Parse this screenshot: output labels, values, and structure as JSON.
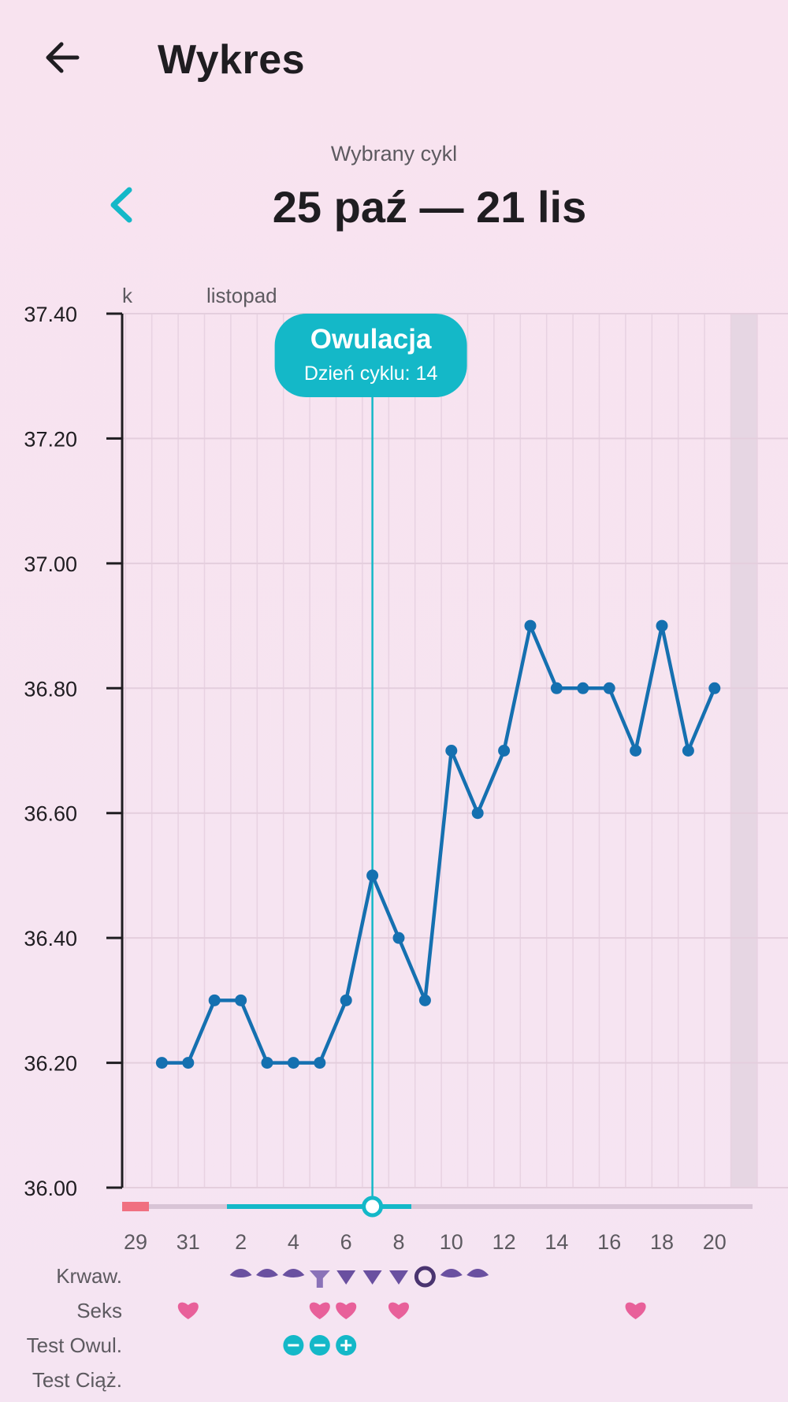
{
  "header": {
    "title": "Wykres",
    "back_icon": "arrow-left-icon"
  },
  "cycle": {
    "caption": "Wybrany cykl",
    "range": "25 paź — 21 lis",
    "prev_icon": "chevron-left-icon"
  },
  "colors": {
    "accent": "#14b8c8",
    "line": "#1570b0",
    "period": "#f07080",
    "heart": "#e8609a",
    "drop": "#6a50a0"
  },
  "chart_data": {
    "type": "line",
    "ylim": [
      36.0,
      37.4
    ],
    "y_ticks": [
      "37.40",
      "37.20",
      "37.00",
      "36.80",
      "36.60",
      "36.40",
      "36.20",
      "36.00"
    ],
    "month_labels": [
      {
        "label": "k",
        "day_index": 0
      },
      {
        "label": "listopad",
        "day_index": 3
      }
    ],
    "x_tick_labels": [
      "29",
      "31",
      "2",
      "4",
      "6",
      "8",
      "10",
      "12",
      "14",
      "16",
      "18",
      "20"
    ],
    "series": [
      {
        "x": [
          "30",
          "31",
          "1",
          "2",
          "3",
          "4",
          "5",
          "6",
          "7",
          "8",
          "9",
          "10",
          "11",
          "12",
          "13",
          "14",
          "15",
          "16",
          "17",
          "18",
          "19",
          "20"
        ],
        "values": [
          36.2,
          36.2,
          36.3,
          36.3,
          36.2,
          36.2,
          36.2,
          36.3,
          36.5,
          36.4,
          36.3,
          36.7,
          36.6,
          36.7,
          36.9,
          36.8,
          36.8,
          36.8,
          36.7,
          36.9,
          36.7,
          36.8
        ]
      }
    ],
    "ovulation": {
      "title": "Owulacja",
      "subtitle": "Dzień cyklu: 14",
      "day": "7"
    },
    "rows": {
      "bleeding": {
        "label": "Krwaw.",
        "days": [
          "2",
          "3",
          "4",
          "5",
          "6",
          "7",
          "8",
          "9",
          "10",
          "11"
        ]
      },
      "sex": {
        "label": "Seks",
        "days": [
          "31",
          "5",
          "6",
          "8",
          "17"
        ]
      },
      "ovulation_test": {
        "label": "Test Owul.",
        "results": [
          "−",
          "−",
          "+"
        ],
        "days": [
          "4",
          "5",
          "6"
        ]
      },
      "pregnancy_test": {
        "label": "Test Ciąż.",
        "days": []
      }
    }
  }
}
